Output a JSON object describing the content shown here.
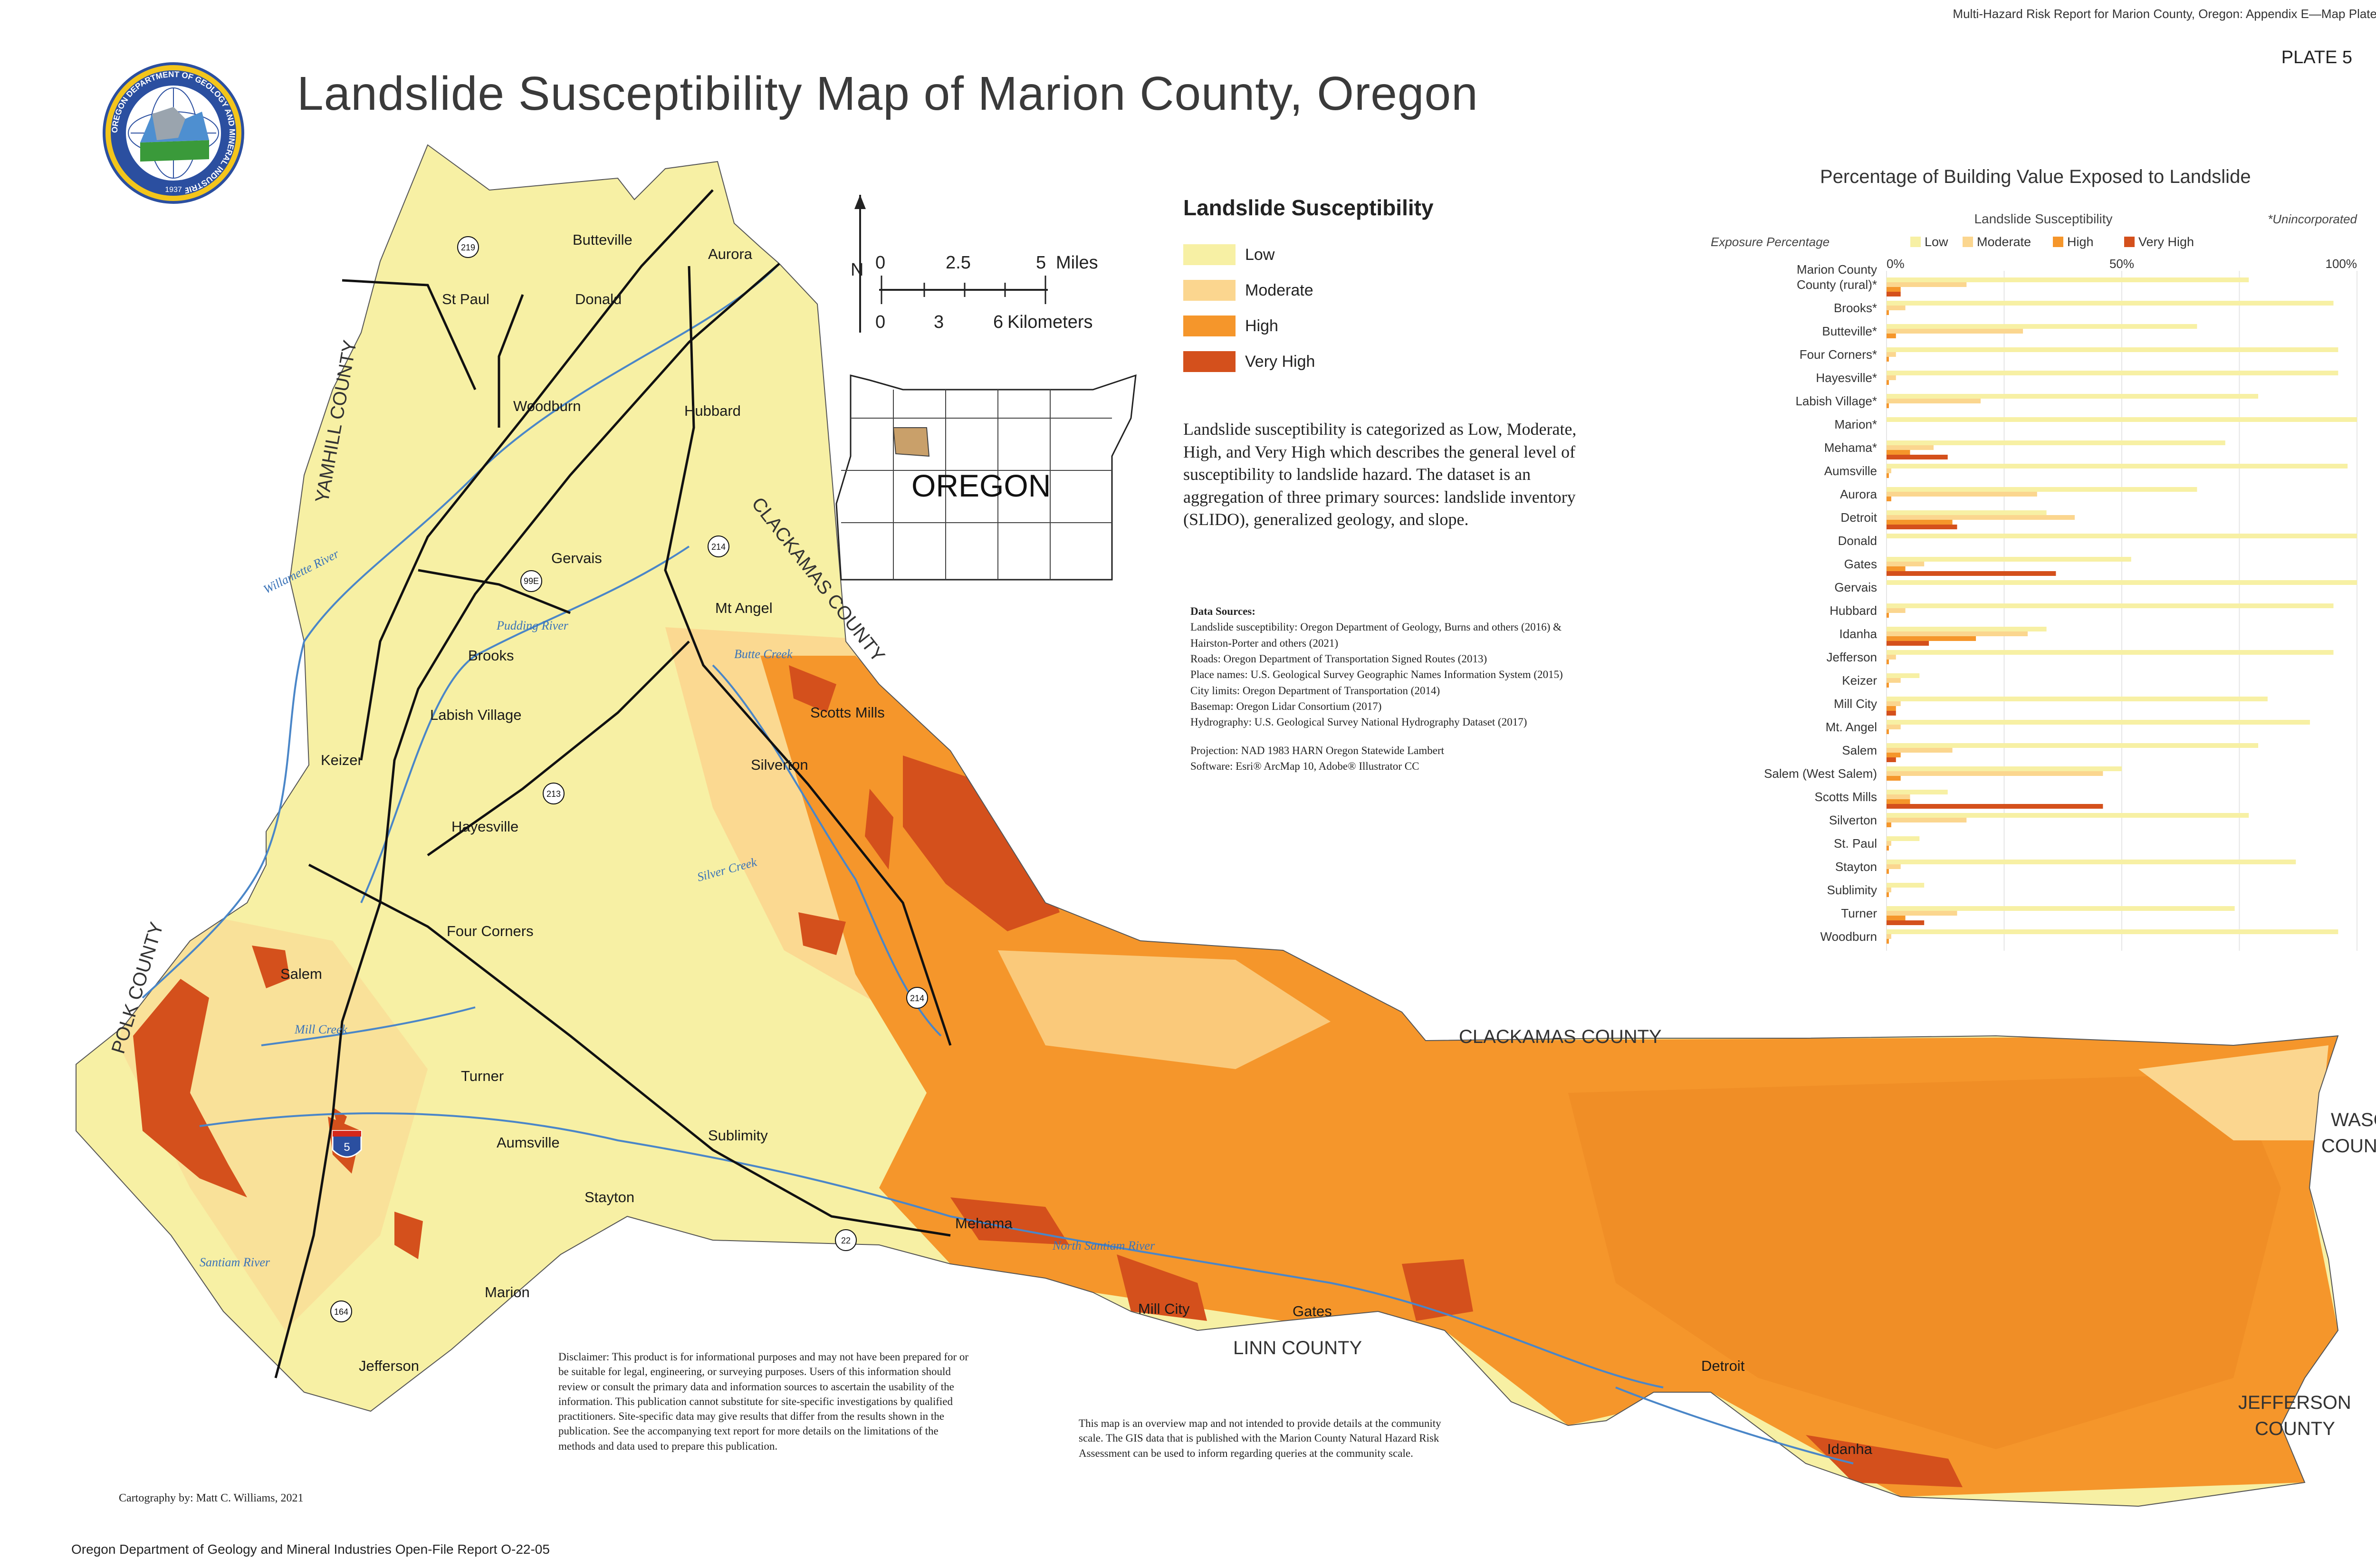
{
  "header": {
    "report": "Multi-Hazard Risk Report for Marion County, Oregon: Appendix E—Map Plates",
    "plate": "PLATE 5",
    "title": "Landslide Susceptibility Map of Marion County, Oregon"
  },
  "logo": {
    "icon": "dogami-seal-icon",
    "ring_text": "OREGON DEPARTMENT OF GEOLOGY AND MINERAL INDUSTRIES",
    "year": "1937"
  },
  "legend": {
    "title": "Landslide Susceptibility",
    "items": [
      {
        "label": "Low",
        "color": "#f7f0a4"
      },
      {
        "label": "Moderate",
        "color": "#fbd68f"
      },
      {
        "label": "High",
        "color": "#f5962b"
      },
      {
        "label": "Very High",
        "color": "#d4501c"
      }
    ]
  },
  "scalebar": {
    "north": "N",
    "miles_ticks": [
      "0",
      "2.5",
      "5"
    ],
    "miles_unit": "Miles",
    "km_ticks": [
      "0",
      "3",
      "6"
    ],
    "km_unit": "Kilometers"
  },
  "inset": {
    "label": "OREGON"
  },
  "description": "Landslide susceptibility is categorized as Low, Moderate, High, and Very High which describes the general level of susceptibility to landslide hazard. The dataset is an aggregation of three primary sources: landslide inventory (SLIDO), generalized geology, and slope.",
  "sources": {
    "title": "Data Sources:",
    "lines": [
      "Landslide susceptibility: Oregon Department of Geology, Burns and others (2016) &",
      "Hairston-Porter and others (2021)",
      "Roads: Oregon Department of Transportation Signed Routes (2013)",
      "Place names: U.S. Geological Survey Geographic Names Information System (2015)",
      "City limits: Oregon Department of Transportation (2014)",
      "Basemap: Oregon Lidar Consortium (2017)",
      "Hydrography: U.S. Geological Survey National Hydrography Dataset (2017)"
    ],
    "projection": "Projection: NAD 1983 HARN Oregon Statewide Lambert",
    "software": "Software: Esri® ArcMap 10, Adobe® Illustrator CC"
  },
  "disclaimer": "Disclaimer: This product is for informational purposes and may not have been prepared for or be suitable for legal, engineering, or surveying purposes. Users of this information should review or consult the primary data and information sources to ascertain the usability of the information. This publication cannot substitute for site-specific investigations by qualified practitioners. Site-specific data may give results that differ from the results shown in the publication. See the accompanying text report for more details on the limitations of the methods and data used to prepare this publication.",
  "overview_note": "This map is an overview map and not intended to provide details at the community scale. The GIS data that is published with the Marion County Natural Hazard Risk Assessment can be used to inform regarding queries at the community scale.",
  "cartography": "Cartography by: Matt C. Williams, 2021",
  "footer": "Oregon Department of Geology and Mineral Industries Open-File Report O-22-05",
  "map": {
    "places": [
      "Butteville",
      "Aurora",
      "St Paul",
      "Donald",
      "Woodburn",
      "Hubbard",
      "Gervais",
      "Mt Angel",
      "Brooks",
      "Labish Village",
      "Scotts Mills",
      "Keizer",
      "Silverton",
      "Hayesville",
      "Four Corners",
      "Salem",
      "Turner",
      "Sublimity",
      "Aumsville",
      "Stayton",
      "Mehama",
      "Mill City",
      "Gates",
      "Marion",
      "Jefferson",
      "Detroit",
      "Idanha"
    ],
    "counties": [
      "YAMHILL COUNTY",
      "CLACKAMAS COUNTY",
      "POLK COUNTY",
      "CLACKAMAS COUNTY",
      "LINN COUNTY",
      "WASCO",
      "COUNTY",
      "JEFFERSON",
      "COUNTY"
    ],
    "rivers": [
      "Willamette River",
      "Pudding River",
      "Butte Creek",
      "Silver Creek",
      "Mill Creek",
      "Santiam River",
      "North Santiam River"
    ],
    "routes": [
      "219",
      "214",
      "99E",
      "213",
      "214",
      "5",
      "22",
      "164"
    ]
  },
  "chart_data": {
    "type": "bar",
    "title": "Percentage of Building Value Exposed to Landslide",
    "subtitle": "Landslide Susceptibility",
    "note": "*Unincorporated",
    "xlabel": "Exposure Percentage",
    "x_ticks": [
      "0%",
      "50%",
      "100%"
    ],
    "xlim": [
      0,
      100
    ],
    "orientation": "horizontal",
    "grid": true,
    "legend_position": "top",
    "categories": [
      "Marion County County (rural)*",
      "Brooks*",
      "Butteville*",
      "Four Corners*",
      "Hayesville*",
      "Labish Village*",
      "Marion*",
      "Mehama*",
      "Aumsville",
      "Aurora",
      "Detroit",
      "Donald",
      "Gates",
      "Gervais",
      "Hubbard",
      "Idanha",
      "Jefferson",
      "Keizer",
      "Mill City",
      "Mt. Angel",
      "Salem",
      "Salem (West Salem)",
      "Scotts Mills",
      "Silverton",
      "St. Paul",
      "Stayton",
      "Sublimity",
      "Turner",
      "Woodburn"
    ],
    "series": [
      {
        "name": "Low",
        "color": "#f7f0a4",
        "values": [
          77,
          95,
          66,
          96,
          96,
          79,
          100,
          72,
          98,
          66,
          34,
          100,
          52,
          100,
          95,
          34,
          95,
          7,
          81,
          90,
          79,
          50,
          13,
          77,
          7,
          87,
          8,
          74,
          96
        ]
      },
      {
        "name": "Moderate",
        "color": "#fbd68f",
        "values": [
          17,
          4,
          29,
          2,
          2,
          20,
          0,
          10,
          1,
          32,
          40,
          0,
          8,
          0,
          4,
          30,
          2,
          3,
          3,
          3,
          14,
          46,
          5,
          17,
          1,
          3,
          1,
          15,
          1
        ]
      },
      {
        "name": "High",
        "color": "#f5962b",
        "values": [
          3,
          0.5,
          2,
          0.5,
          0.5,
          0.5,
          0,
          5,
          0.5,
          1,
          14,
          0,
          4,
          0,
          0.5,
          19,
          0.5,
          0.5,
          2,
          0.5,
          3,
          3,
          5,
          1,
          0.5,
          0.5,
          0.5,
          4,
          0.5
        ]
      },
      {
        "name": "Very High",
        "color": "#d4501c",
        "values": [
          3,
          0,
          0,
          0,
          0,
          0,
          0,
          13,
          0,
          0,
          15,
          0,
          36,
          0,
          0,
          9,
          0,
          0,
          2,
          0,
          2,
          0,
          46,
          0,
          0,
          0,
          0,
          8,
          0
        ]
      }
    ]
  }
}
